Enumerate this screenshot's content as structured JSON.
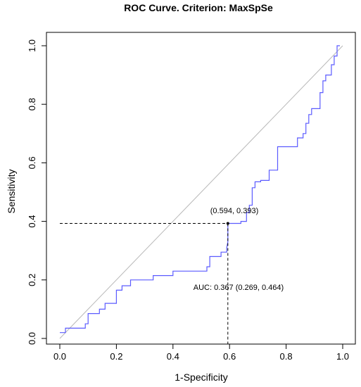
{
  "chart_data": {
    "type": "line",
    "title": "ROC Curve. Criterion: MaxSpSe",
    "xlabel": "1-Specificity",
    "ylabel": "Sensitivity",
    "xlim": [
      0,
      1
    ],
    "ylim": [
      0,
      1
    ],
    "x_ticks": [
      "0.0",
      "0.2",
      "0.4",
      "0.6",
      "0.8",
      "1.0"
    ],
    "y_ticks": [
      "0.0",
      "0.2",
      "0.4",
      "0.6",
      "0.8",
      "1.0"
    ],
    "grid": false,
    "colors": {
      "roc": "#5b5bff",
      "diagonal": "#b8b8b8",
      "guide": "#000000",
      "frame": "#000000"
    },
    "series": [
      {
        "points": [
          [
            0.0,
            0.02
          ],
          [
            0.02,
            0.02
          ],
          [
            0.02,
            0.035
          ],
          [
            0.09,
            0.035
          ],
          [
            0.09,
            0.05
          ],
          [
            0.1,
            0.05
          ],
          [
            0.1,
            0.085
          ],
          [
            0.14,
            0.085
          ],
          [
            0.14,
            0.1
          ],
          [
            0.16,
            0.1
          ],
          [
            0.16,
            0.12
          ],
          [
            0.2,
            0.12
          ],
          [
            0.2,
            0.165
          ],
          [
            0.22,
            0.165
          ],
          [
            0.22,
            0.18
          ],
          [
            0.25,
            0.18
          ],
          [
            0.25,
            0.2
          ],
          [
            0.33,
            0.2
          ],
          [
            0.33,
            0.215
          ],
          [
            0.4,
            0.215
          ],
          [
            0.4,
            0.23
          ],
          [
            0.52,
            0.23
          ],
          [
            0.52,
            0.245
          ],
          [
            0.53,
            0.245
          ],
          [
            0.53,
            0.28
          ],
          [
            0.57,
            0.28
          ],
          [
            0.57,
            0.295
          ],
          [
            0.59,
            0.295
          ],
          [
            0.59,
            0.31
          ],
          [
            0.594,
            0.33
          ],
          [
            0.594,
            0.393
          ],
          [
            0.64,
            0.393
          ],
          [
            0.64,
            0.4
          ],
          [
            0.66,
            0.4
          ],
          [
            0.66,
            0.43
          ],
          [
            0.67,
            0.43
          ],
          [
            0.67,
            0.455
          ],
          [
            0.68,
            0.455
          ],
          [
            0.68,
            0.515
          ],
          [
            0.69,
            0.515
          ],
          [
            0.69,
            0.535
          ],
          [
            0.71,
            0.535
          ],
          [
            0.71,
            0.54
          ],
          [
            0.74,
            0.54
          ],
          [
            0.74,
            0.575
          ],
          [
            0.77,
            0.575
          ],
          [
            0.77,
            0.655
          ],
          [
            0.84,
            0.655
          ],
          [
            0.84,
            0.685
          ],
          [
            0.86,
            0.685
          ],
          [
            0.86,
            0.7
          ],
          [
            0.87,
            0.7
          ],
          [
            0.87,
            0.735
          ],
          [
            0.88,
            0.735
          ],
          [
            0.88,
            0.765
          ],
          [
            0.89,
            0.765
          ],
          [
            0.89,
            0.785
          ],
          [
            0.92,
            0.785
          ],
          [
            0.92,
            0.84
          ],
          [
            0.93,
            0.84
          ],
          [
            0.93,
            0.88
          ],
          [
            0.94,
            0.88
          ],
          [
            0.94,
            0.9
          ],
          [
            0.96,
            0.9
          ],
          [
            0.96,
            0.935
          ],
          [
            0.97,
            0.935
          ],
          [
            0.97,
            0.965
          ],
          [
            0.98,
            0.965
          ],
          [
            0.98,
            1.0
          ],
          [
            0.99,
            1.0
          ]
        ]
      }
    ],
    "optimal_point": {
      "x": 0.594,
      "y": 0.393,
      "label": "(0.594, 0.393)"
    },
    "auc_label": "AUC: 0.367 (0.269, 0.464)"
  }
}
